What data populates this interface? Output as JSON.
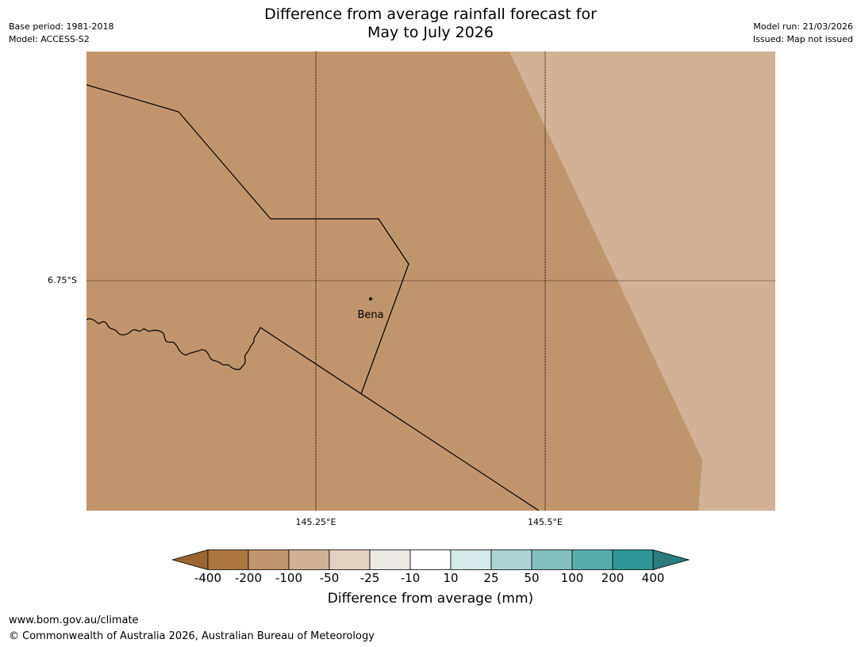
{
  "header": {
    "title_line1": "Difference from average rainfall forecast for",
    "title_line2": "May to July 2026",
    "base_period": "Base period: 1981-2018",
    "model": "Model: ACCESS-S2",
    "model_run": "Model run: 21/03/2026",
    "issued": "Issued: Map not issued"
  },
  "map": {
    "lat_labels": [
      "6.75°S"
    ],
    "lon_labels": [
      "145.25°E",
      "145.5°E"
    ],
    "place": "Bena",
    "colors": {
      "dry_100_200": "#c0956b",
      "dry_50_100": "#d2b295",
      "lines": "#000000"
    }
  },
  "colorbar": {
    "tick_labels": [
      "-400",
      "-200",
      "-100",
      "-50",
      "-25",
      "-10",
      "10",
      "25",
      "50",
      "100",
      "200",
      "400"
    ],
    "colors": [
      "#9a6530",
      "#ad773f",
      "#c0956b",
      "#d2b295",
      "#e4d2c0",
      "#ede9e5",
      "#ffffff",
      "#d6e9ea",
      "#acd6d6",
      "#82c0bd",
      "#58acab",
      "#2f9797",
      "#2a7b7b"
    ],
    "label": "Difference from average (mm)"
  },
  "footer": {
    "url": "www.bom.gov.au/climate",
    "copyright": "© Commonwealth of Australia 2026, Australian Bureau of Meteorology"
  }
}
